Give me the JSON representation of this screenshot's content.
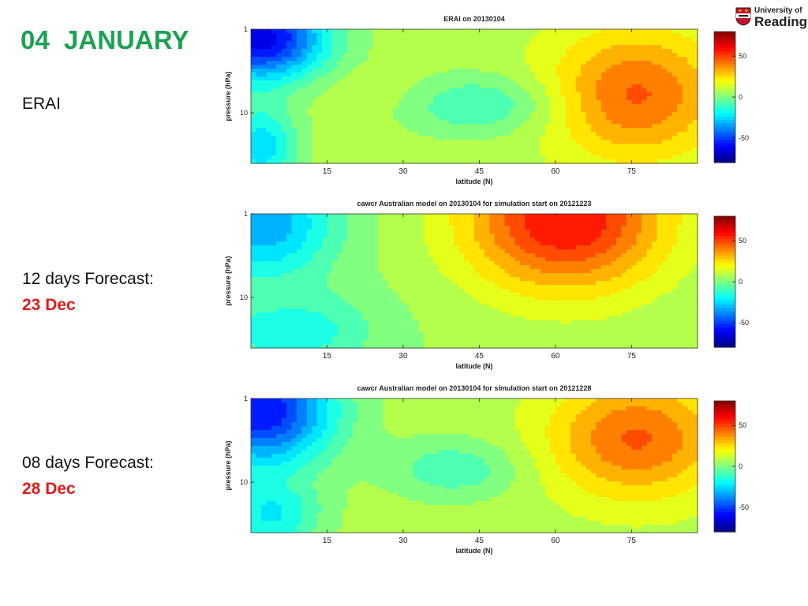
{
  "slide": {
    "title": "04  JANUARY",
    "labels": [
      {
        "line1": "ERAI",
        "line2": ""
      },
      {
        "line1": "12 days Forecast:",
        "line2": "23 Dec"
      },
      {
        "line1": "08 days Forecast:",
        "line2": "28 Dec"
      }
    ]
  },
  "logo": {
    "line1": "University of",
    "line2": "Reading"
  },
  "colors": {
    "title": "#1aa251",
    "highlight": "#e01b1b"
  },
  "chart_data": [
    {
      "type": "heatmap",
      "title": "ERAI on 20130104",
      "xlabel": "latitude (N)",
      "ylabel": "pressure (hPa)",
      "xlim": [
        0,
        88
      ],
      "x_ticks": [
        15,
        30,
        45,
        60,
        75
      ],
      "y_scale": "log",
      "y_reversed": true,
      "y_ticks": [
        1,
        10
      ],
      "colorbar": {
        "range": [
          -80,
          80
        ],
        "ticks": [
          50,
          0,
          -50
        ],
        "colormap": "jet"
      },
      "features": [
        {
          "kind": "min",
          "lat": 2,
          "p": 1.3,
          "value": -65,
          "width": 9,
          "height": 0.35
        },
        {
          "kind": "min",
          "lat": 2,
          "p": 25,
          "value": -25,
          "width": 5,
          "height": 0.35
        },
        {
          "kind": "min",
          "lat": 45,
          "p": 8,
          "value": -12,
          "width": 11,
          "height": 0.25
        },
        {
          "kind": "max",
          "lat": 24,
          "p": 6,
          "value": 12,
          "width": 9,
          "height": 0.2
        },
        {
          "kind": "max",
          "lat": 76,
          "p": 6,
          "value": 45,
          "width": 12,
          "height": 0.55
        }
      ],
      "background_value": 8
    },
    {
      "type": "heatmap",
      "title": "cawcr Australian model on 20130104 for simulation start on 20121223",
      "xlabel": "latitude (N)",
      "ylabel": "pressure (hPa)",
      "xlim": [
        0,
        88
      ],
      "x_ticks": [
        15,
        30,
        45,
        60,
        75
      ],
      "y_scale": "log",
      "y_reversed": true,
      "y_ticks": [
        1,
        10
      ],
      "colorbar": {
        "range": [
          -80,
          80
        ],
        "ticks": [
          50,
          0,
          -50
        ],
        "colormap": "jet"
      },
      "features": [
        {
          "kind": "min",
          "lat": 2,
          "p": 1.3,
          "value": -35,
          "width": 10,
          "height": 0.45
        },
        {
          "kind": "min",
          "lat": 8,
          "p": 25,
          "value": -18,
          "width": 11,
          "height": 0.35
        },
        {
          "kind": "max",
          "lat": 62,
          "p": 1.2,
          "value": 60,
          "width": 14,
          "height": 0.6
        },
        {
          "kind": "max",
          "lat": 6,
          "p": 10,
          "value": 10,
          "width": 6,
          "height": 0.15
        }
      ],
      "background_value": 5
    },
    {
      "type": "heatmap",
      "title": "cawcr Australian model on 20130104 for simulation start on 20121228",
      "xlabel": "latitude (N)",
      "ylabel": "pressure (hPa)",
      "xlim": [
        0,
        88
      ],
      "x_ticks": [
        15,
        30,
        45,
        60,
        75
      ],
      "y_scale": "log",
      "y_reversed": true,
      "y_ticks": [
        1,
        10
      ],
      "colorbar": {
        "range": [
          -80,
          80
        ],
        "ticks": [
          50,
          0,
          -50
        ],
        "colormap": "jet"
      },
      "features": [
        {
          "kind": "min",
          "lat": 2,
          "p": 1.4,
          "value": -60,
          "width": 10,
          "height": 0.45
        },
        {
          "kind": "min",
          "lat": 4,
          "p": 25,
          "value": -20,
          "width": 7,
          "height": 0.35
        },
        {
          "kind": "min",
          "lat": 40,
          "p": 7,
          "value": -10,
          "width": 9,
          "height": 0.25
        },
        {
          "kind": "max",
          "lat": 76,
          "p": 3,
          "value": 45,
          "width": 12,
          "height": 0.5
        },
        {
          "kind": "max",
          "lat": 6,
          "p": 10,
          "value": 12,
          "width": 5,
          "height": 0.12
        }
      ],
      "background_value": 8
    }
  ]
}
